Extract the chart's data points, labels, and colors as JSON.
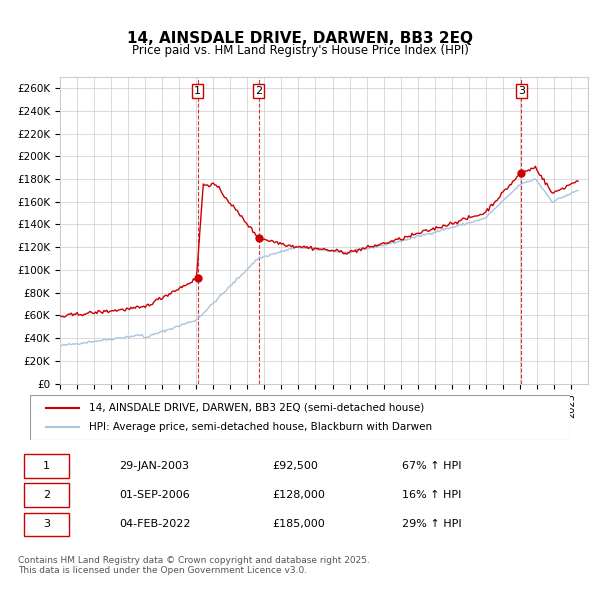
{
  "title": "14, AINSDALE DRIVE, DARWEN, BB3 2EQ",
  "subtitle": "Price paid vs. HM Land Registry's House Price Index (HPI)",
  "ylabel_ticks": [
    "£0",
    "£20K",
    "£40K",
    "£60K",
    "£80K",
    "£100K",
    "£120K",
    "£140K",
    "£160K",
    "£180K",
    "£200K",
    "£220K",
    "£240K",
    "£260K"
  ],
  "ytick_values": [
    0,
    20000,
    40000,
    60000,
    80000,
    100000,
    120000,
    140000,
    160000,
    180000,
    200000,
    220000,
    240000,
    260000
  ],
  "ylim": [
    0,
    270000
  ],
  "sale_dates": [
    "2003-01-29",
    "2006-09-01",
    "2022-02-04"
  ],
  "sale_prices": [
    92500,
    128000,
    185000
  ],
  "sale_labels": [
    "1",
    "2",
    "3"
  ],
  "hpi_color": "#aac4e0",
  "price_color": "#cc0000",
  "sale_marker_color": "#cc0000",
  "vline_color": "#cc0000",
  "grid_color": "#cccccc",
  "background_color": "#ffffff",
  "legend_label_price": "14, AINSDALE DRIVE, DARWEN, BB3 2EQ (semi-detached house)",
  "legend_label_hpi": "HPI: Average price, semi-detached house, Blackburn with Darwen",
  "table_rows": [
    [
      "1",
      "29-JAN-2003",
      "£92,500",
      "67% ↑ HPI"
    ],
    [
      "2",
      "01-SEP-2006",
      "£128,000",
      "16% ↑ HPI"
    ],
    [
      "3",
      "04-FEB-2022",
      "£185,000",
      "29% ↑ HPI"
    ]
  ],
  "footer": "Contains HM Land Registry data © Crown copyright and database right 2025.\nThis data is licensed under the Open Government Licence v3.0.",
  "x_start_year": 1995,
  "x_end_year": 2025
}
